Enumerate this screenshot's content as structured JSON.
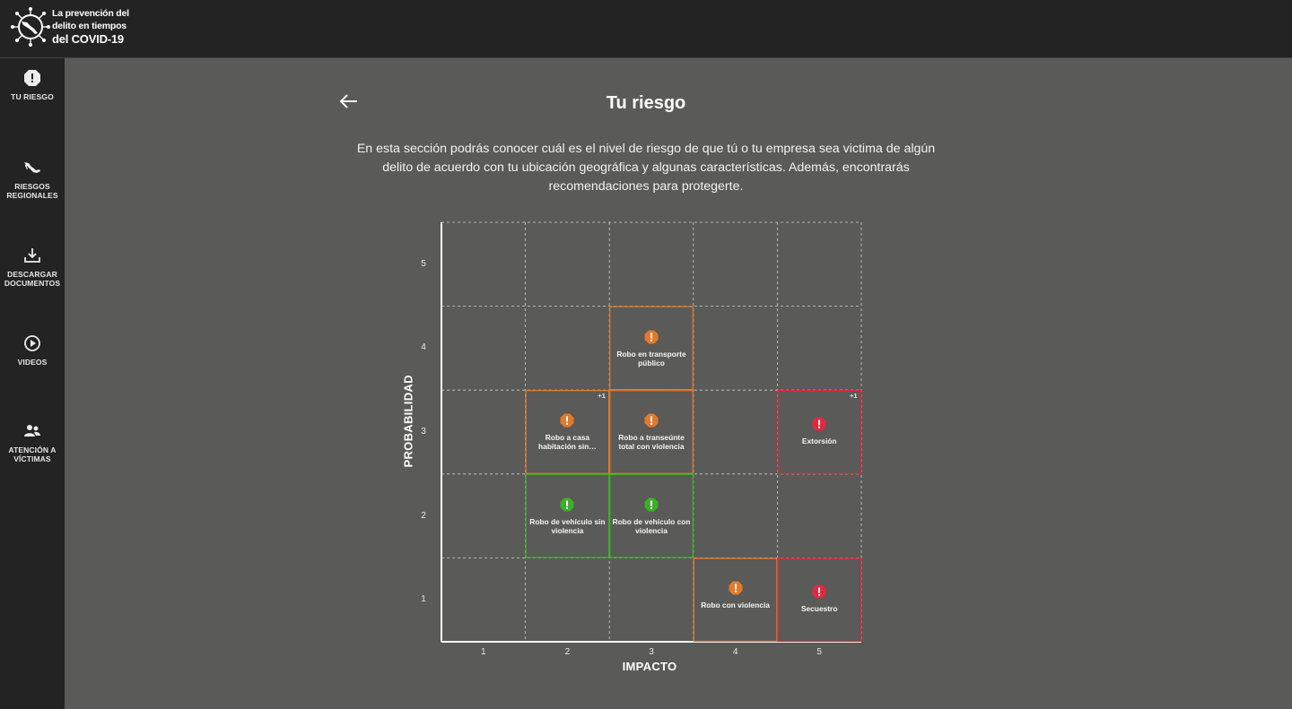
{
  "header": {
    "logo_line1": "La prevención del",
    "logo_line2": "delito en tiempos",
    "logo_line3": "del COVID-19"
  },
  "sidebar": {
    "items": [
      {
        "label": "TU RIESGO",
        "icon": "alert-octagon-icon"
      },
      {
        "label": "RIESGOS\nREGIONALES",
        "icon": "mexico-map-icon"
      },
      {
        "label": "DESCARGAR\nDOCUMENTOS",
        "icon": "download-icon"
      },
      {
        "label": "VIDEOS",
        "icon": "play-circle-icon"
      },
      {
        "label": "ATENCIÓN A\nVÍCTIMAS",
        "icon": "people-icon"
      }
    ]
  },
  "main": {
    "title": "Tu riesgo",
    "intro": "En esta sección podrás conocer cuál es el nivel de riesgo de que tú o tu empresa sea victima de algún delito de acuerdo con tu ubicación geográfica y algunas características. Además, encontrarás recomendaciones para protegerte."
  },
  "colors": {
    "high": "#e5273e",
    "medium": "#e07a2c",
    "low": "#3fae2a",
    "grid": "#cfcfcf"
  },
  "chart_data": {
    "type": "table",
    "xlabel": "IMPACTO",
    "ylabel": "PROBABILIDAD",
    "x_ticks": [
      "1",
      "2",
      "3",
      "4",
      "5"
    ],
    "y_ticks": [
      "1",
      "2",
      "3",
      "4",
      "5"
    ],
    "cells": [
      {
        "impacto": 3,
        "probabilidad": 4,
        "label": "Robo en transporte público",
        "level": "medium",
        "extra": ""
      },
      {
        "impacto": 2,
        "probabilidad": 3,
        "label": "Robo a casa habitación sin…",
        "level": "medium",
        "extra": "+1"
      },
      {
        "impacto": 3,
        "probabilidad": 3,
        "label": "Robo a transeúnte total con violencia",
        "level": "medium",
        "extra": ""
      },
      {
        "impacto": 5,
        "probabilidad": 3,
        "label": "Extorsión",
        "level": "high",
        "extra": "+1"
      },
      {
        "impacto": 2,
        "probabilidad": 2,
        "label": "Robo de vehículo sin violencia",
        "level": "low",
        "extra": ""
      },
      {
        "impacto": 3,
        "probabilidad": 2,
        "label": "Robo de vehículo con violencia",
        "level": "low",
        "extra": ""
      },
      {
        "impacto": 4,
        "probabilidad": 1,
        "label": "Robo con violencia",
        "level": "medium",
        "extra": ""
      },
      {
        "impacto": 5,
        "probabilidad": 1,
        "label": "Secuestro",
        "level": "high",
        "extra": ""
      }
    ]
  }
}
